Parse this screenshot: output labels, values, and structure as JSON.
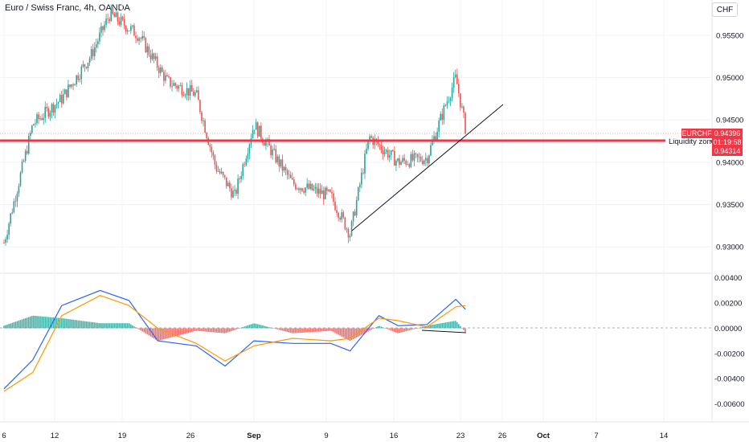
{
  "header": {
    "title": "Euro / Swiss Franc, 4h, OANDA",
    "currency": "CHF"
  },
  "colors": {
    "up": "#26a69a",
    "down": "#ef5350",
    "line_red": "#f23645",
    "macd": "#2962ff",
    "signal": "#ff9800",
    "hist_up": "#26a69a",
    "hist_down": "#ef5350"
  },
  "price_axis": {
    "ticks": [
      "0.95500",
      "0.95000",
      "0.94500",
      "0.94000",
      "0.93500",
      "0.93000"
    ],
    "range": [
      0.9285,
      0.9585
    ]
  },
  "macd_axis": {
    "ticks": [
      "0.00400",
      "0.00200",
      "0.00000",
      "-0.00200",
      "-0.00400",
      "-0.00600"
    ],
    "range": [
      -0.0066,
      0.0043
    ]
  },
  "time_axis": {
    "labels": [
      "6",
      "12",
      "19",
      "26",
      "Sep",
      "9",
      "16",
      "23",
      "26",
      "Oct",
      "7",
      "14"
    ]
  },
  "labels": {
    "symbol_tag": "EURCHF",
    "last_price": "0.94396",
    "countdown": "01:19:58",
    "zone_label": "Liquidity zone",
    "zone_price": "0.94314"
  },
  "chart_data": [
    {
      "type": "candlestick",
      "title": "Euro / Swiss Franc, 4h, OANDA",
      "ylim": [
        0.9285,
        0.9585
      ],
      "key_prices": {
        "last": 0.94396,
        "liquidity_zone": 0.94314
      },
      "price_path": [
        {
          "x": "6",
          "y": 0.9305
        },
        {
          "x": "9",
          "y": 0.9445
        },
        {
          "x": "12",
          "y": 0.9475
        },
        {
          "x": "15",
          "y": 0.9525
        },
        {
          "x": "17",
          "y": 0.9575
        },
        {
          "x": "20",
          "y": 0.955
        },
        {
          "x": "23",
          "y": 0.9495
        },
        {
          "x": "26",
          "y": 0.948
        },
        {
          "x": "28",
          "y": 0.9395
        },
        {
          "x": "30",
          "y": 0.936
        },
        {
          "x": "Sep",
          "y": 0.9445
        },
        {
          "x": "5",
          "y": 0.9375
        },
        {
          "x": "9",
          "y": 0.936
        },
        {
          "x": "11",
          "y": 0.9315
        },
        {
          "x": "13",
          "y": 0.943
        },
        {
          "x": "16",
          "y": 0.94
        },
        {
          "x": "19",
          "y": 0.9405
        },
        {
          "x": "21",
          "y": 0.947
        },
        {
          "x": "22",
          "y": 0.95
        },
        {
          "x": "23",
          "y": 0.944
        }
      ],
      "trendline": {
        "from": {
          "x": "11",
          "y": 0.9312
        },
        "to": {
          "x": "26",
          "y": 0.9478
        }
      }
    },
    {
      "type": "line",
      "title": "MACD",
      "ylim": [
        -0.0066,
        0.0043
      ],
      "series": [
        {
          "values": [
            {
              "x": "6",
              "y": -0.0048
            },
            {
              "x": "9",
              "y": -0.0025
            },
            {
              "x": "12",
              "y": 0.0018
            },
            {
              "x": "16",
              "y": 0.003
            },
            {
              "x": "19",
              "y": 0.0022
            },
            {
              "x": "22",
              "y": -0.001
            },
            {
              "x": "26",
              "y": -0.0014
            },
            {
              "x": "29",
              "y": -0.003
            },
            {
              "x": "Sep",
              "y": -0.001
            },
            {
              "x": "5",
              "y": -0.0012
            },
            {
              "x": "9",
              "y": -0.0012
            },
            {
              "x": "11",
              "y": -0.0018
            },
            {
              "x": "14",
              "y": 0.001
            },
            {
              "x": "16",
              "y": 0.0002
            },
            {
              "x": "19",
              "y": 0.0003
            },
            {
              "x": "22",
              "y": 0.0023
            },
            {
              "x": "23",
              "y": 0.0015
            }
          ]
        },
        {
          "values": [
            {
              "x": "6",
              "y": -0.005
            },
            {
              "x": "9",
              "y": -0.0035
            },
            {
              "x": "12",
              "y": 0.001
            },
            {
              "x": "16",
              "y": 0.0026
            },
            {
              "x": "19",
              "y": 0.0018
            },
            {
              "x": "22",
              "y": 0.0
            },
            {
              "x": "26",
              "y": -0.0012
            },
            {
              "x": "29",
              "y": -0.0026
            },
            {
              "x": "Sep",
              "y": -0.0014
            },
            {
              "x": "5",
              "y": -0.0008
            },
            {
              "x": "9",
              "y": -0.001
            },
            {
              "x": "11",
              "y": -0.0008
            },
            {
              "x": "14",
              "y": 0.0008
            },
            {
              "x": "16",
              "y": 0.0006
            },
            {
              "x": "19",
              "y": 0.0001
            },
            {
              "x": "22",
              "y": 0.0017
            },
            {
              "x": "23",
              "y": 0.0018
            }
          ]
        }
      ]
    }
  ]
}
